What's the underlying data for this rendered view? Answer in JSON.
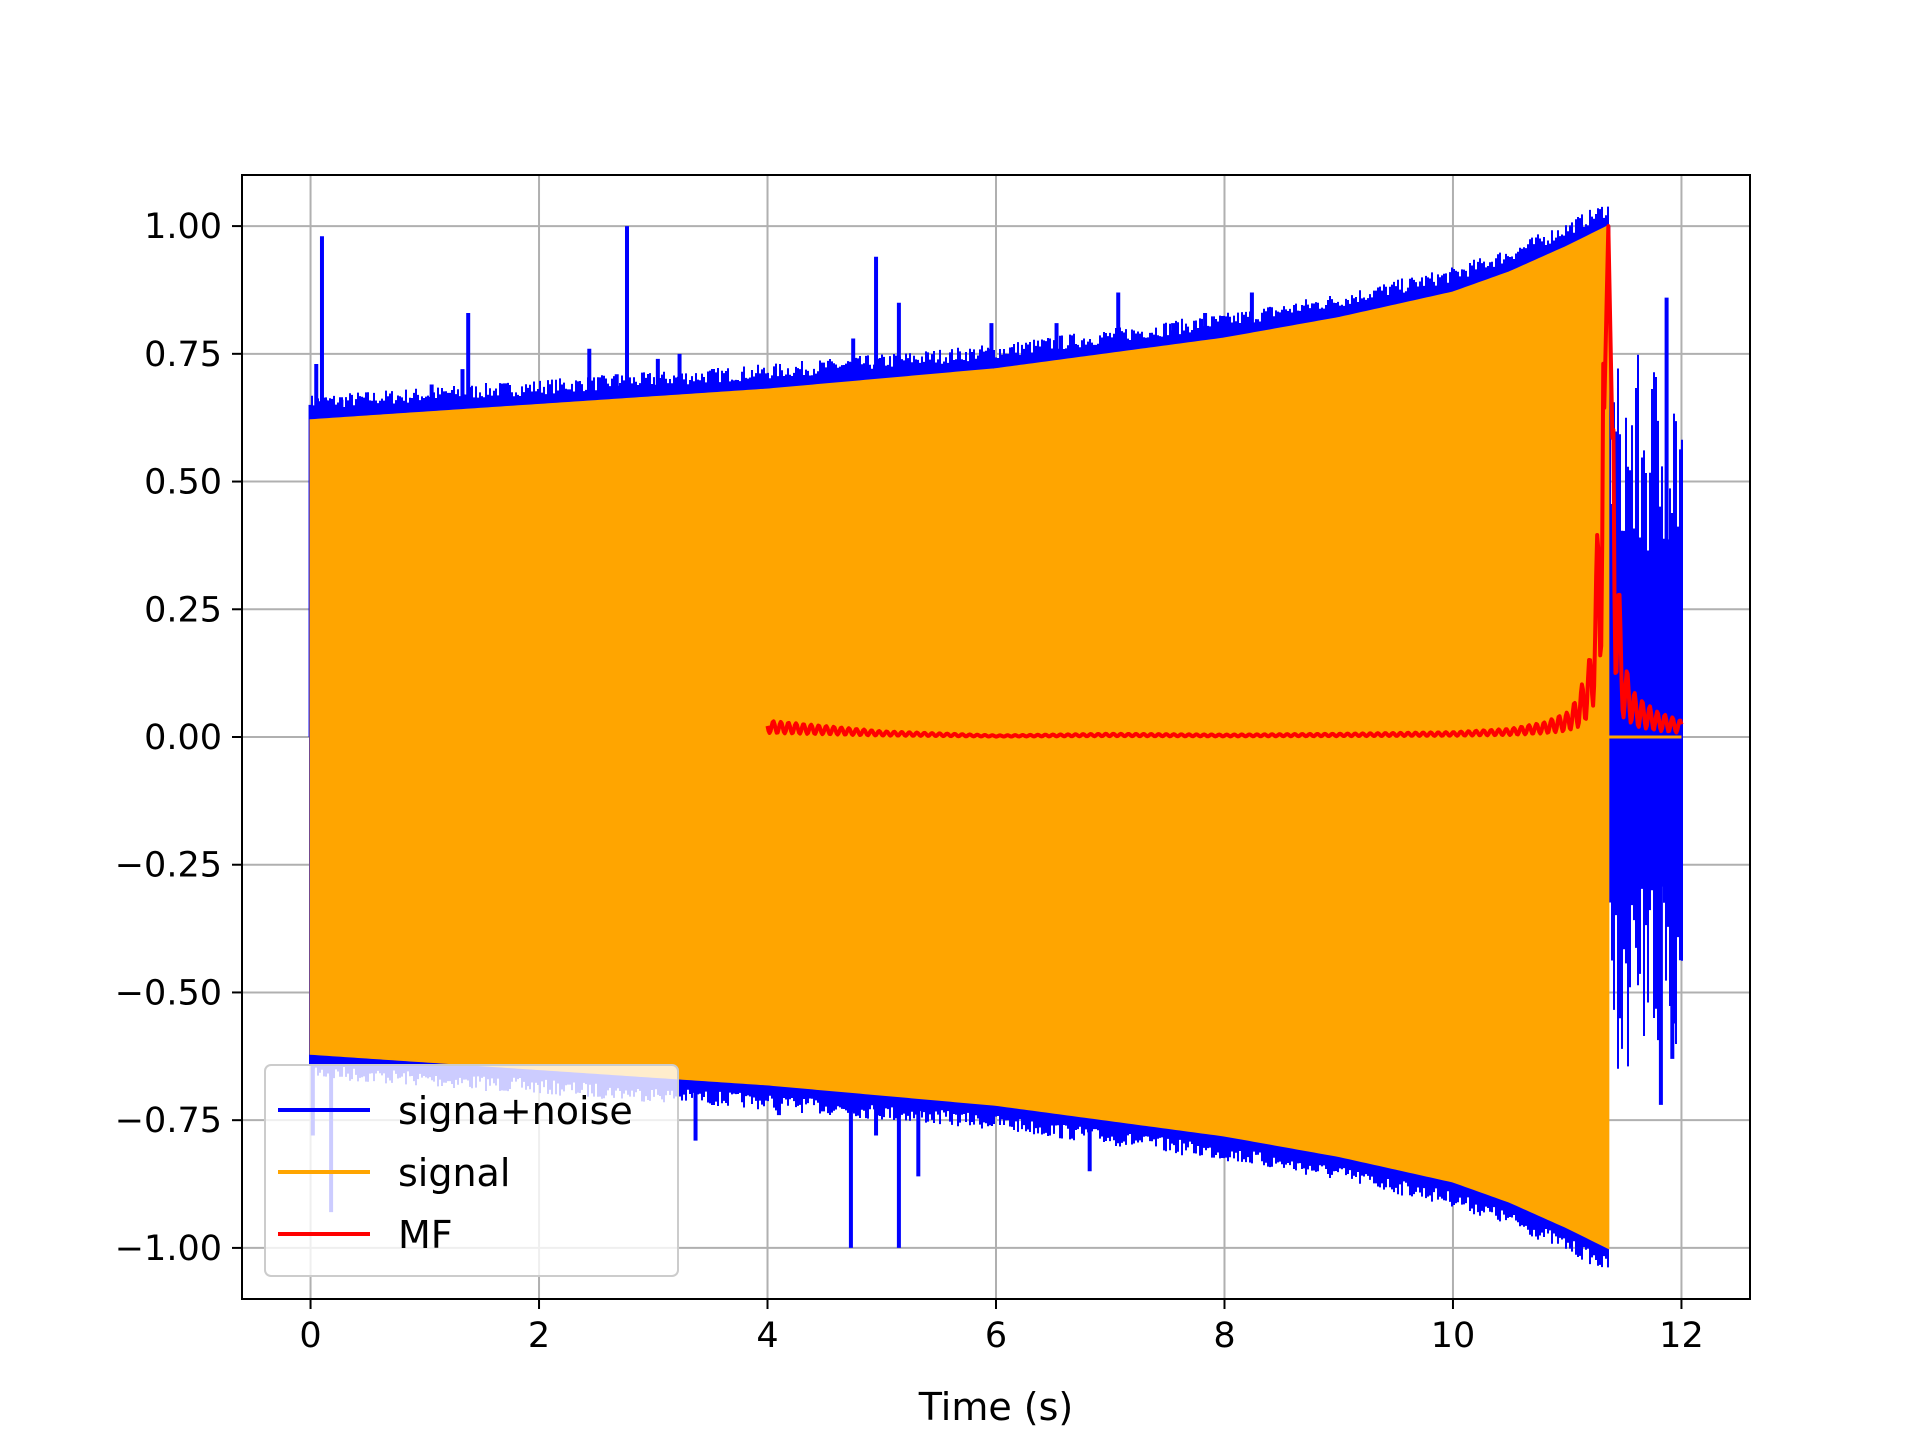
{
  "chart_data": {
    "type": "line",
    "title": "",
    "xlabel": "Time (s)",
    "ylabel": "",
    "xlim": [
      -0.6,
      12.6
    ],
    "ylim": [
      -1.1,
      1.1
    ],
    "xticks": [
      0,
      2,
      4,
      6,
      8,
      10,
      12
    ],
    "xtick_labels": [
      "0",
      "2",
      "4",
      "6",
      "8",
      "10",
      "12"
    ],
    "yticks": [
      1.0,
      0.75,
      0.5,
      0.25,
      0.0,
      -0.25,
      -0.5,
      -0.75,
      -1.0
    ],
    "ytick_labels": [
      "1.00",
      "0.75",
      "0.50",
      "0.25",
      "0.00",
      "−0.25",
      "−0.50",
      "−0.75",
      "−1.00"
    ],
    "grid": true,
    "legend_position": "lower-left",
    "series": [
      {
        "name": "signa+noise",
        "color": "#0000ff",
        "style": "dense-noise-with-spikes",
        "x_range": [
          0,
          12
        ],
        "spikes": [
          {
            "x": 0.0,
            "y": 0.65
          },
          {
            "x": 0.05,
            "y": 0.73
          },
          {
            "x": 0.1,
            "y": 0.98
          },
          {
            "x": 0.13,
            "y": 0.66
          },
          {
            "x": 0.27,
            "y": 0.66
          },
          {
            "x": 0.42,
            "y": 0.66
          },
          {
            "x": 1.06,
            "y": 0.69
          },
          {
            "x": 1.33,
            "y": 0.72
          },
          {
            "x": 1.38,
            "y": 0.83
          },
          {
            "x": 2.0,
            "y": 0.68
          },
          {
            "x": 2.44,
            "y": 0.76
          },
          {
            "x": 2.68,
            "y": 0.71
          },
          {
            "x": 2.77,
            "y": 1.0
          },
          {
            "x": 3.04,
            "y": 0.74
          },
          {
            "x": 3.23,
            "y": 0.75
          },
          {
            "x": 4.75,
            "y": 0.78
          },
          {
            "x": 4.95,
            "y": 0.94
          },
          {
            "x": 5.15,
            "y": 0.85
          },
          {
            "x": 5.96,
            "y": 0.81
          },
          {
            "x": 6.53,
            "y": 0.81
          },
          {
            "x": 7.07,
            "y": 0.87
          },
          {
            "x": 7.55,
            "y": 0.81
          },
          {
            "x": 7.83,
            "y": 0.83
          },
          {
            "x": 8.24,
            "y": 0.87
          },
          {
            "x": 9.93,
            "y": 0.86
          },
          {
            "x": 10.24,
            "y": 0.89
          },
          {
            "x": 11.36,
            "y": 1.0
          },
          {
            "x": 11.87,
            "y": 0.86
          },
          {
            "x": 0.02,
            "y": -0.78
          },
          {
            "x": 0.18,
            "y": -0.93
          },
          {
            "x": 3.37,
            "y": -0.79
          },
          {
            "x": 4.1,
            "y": -0.74
          },
          {
            "x": 4.73,
            "y": -1.0
          },
          {
            "x": 4.95,
            "y": -0.78
          },
          {
            "x": 5.15,
            "y": -1.0
          },
          {
            "x": 5.32,
            "y": -0.86
          },
          {
            "x": 6.82,
            "y": -0.85
          },
          {
            "x": 11.82,
            "y": -0.72
          },
          {
            "x": 11.92,
            "y": -0.63
          }
        ],
        "tail_after_peak": {
          "x_range": [
            11.36,
            12
          ],
          "y_range": [
            -0.65,
            0.75
          ]
        }
      },
      {
        "name": "signal",
        "color": "#ffa500",
        "style": "chirp-envelope",
        "x_range": [
          0,
          11.36
        ],
        "envelope": [
          {
            "x": 0.0,
            "y": 0.62
          },
          {
            "x": 2.0,
            "y": 0.65
          },
          {
            "x": 4.0,
            "y": 0.68
          },
          {
            "x": 6.0,
            "y": 0.72
          },
          {
            "x": 8.0,
            "y": 0.78
          },
          {
            "x": 9.0,
            "y": 0.82
          },
          {
            "x": 10.0,
            "y": 0.87
          },
          {
            "x": 10.5,
            "y": 0.91
          },
          {
            "x": 11.0,
            "y": 0.96
          },
          {
            "x": 11.36,
            "y": 1.0
          }
        ]
      },
      {
        "name": "MF",
        "color": "#ff0000",
        "style": "matched-filter-output",
        "x": [
          4.0,
          5.0,
          6.0,
          7.0,
          8.0,
          9.0,
          10.0,
          10.5,
          10.8,
          11.0,
          11.1,
          11.2,
          11.25,
          11.3,
          11.36,
          11.42,
          11.48,
          11.6,
          11.8,
          12.0
        ],
        "values": [
          0.02,
          0.007,
          0.002,
          0.004,
          0.003,
          0.004,
          0.006,
          0.01,
          0.018,
          0.03,
          0.05,
          0.1,
          0.2,
          0.4,
          1.0,
          0.3,
          0.1,
          0.05,
          0.03,
          0.02
        ]
      }
    ]
  }
}
